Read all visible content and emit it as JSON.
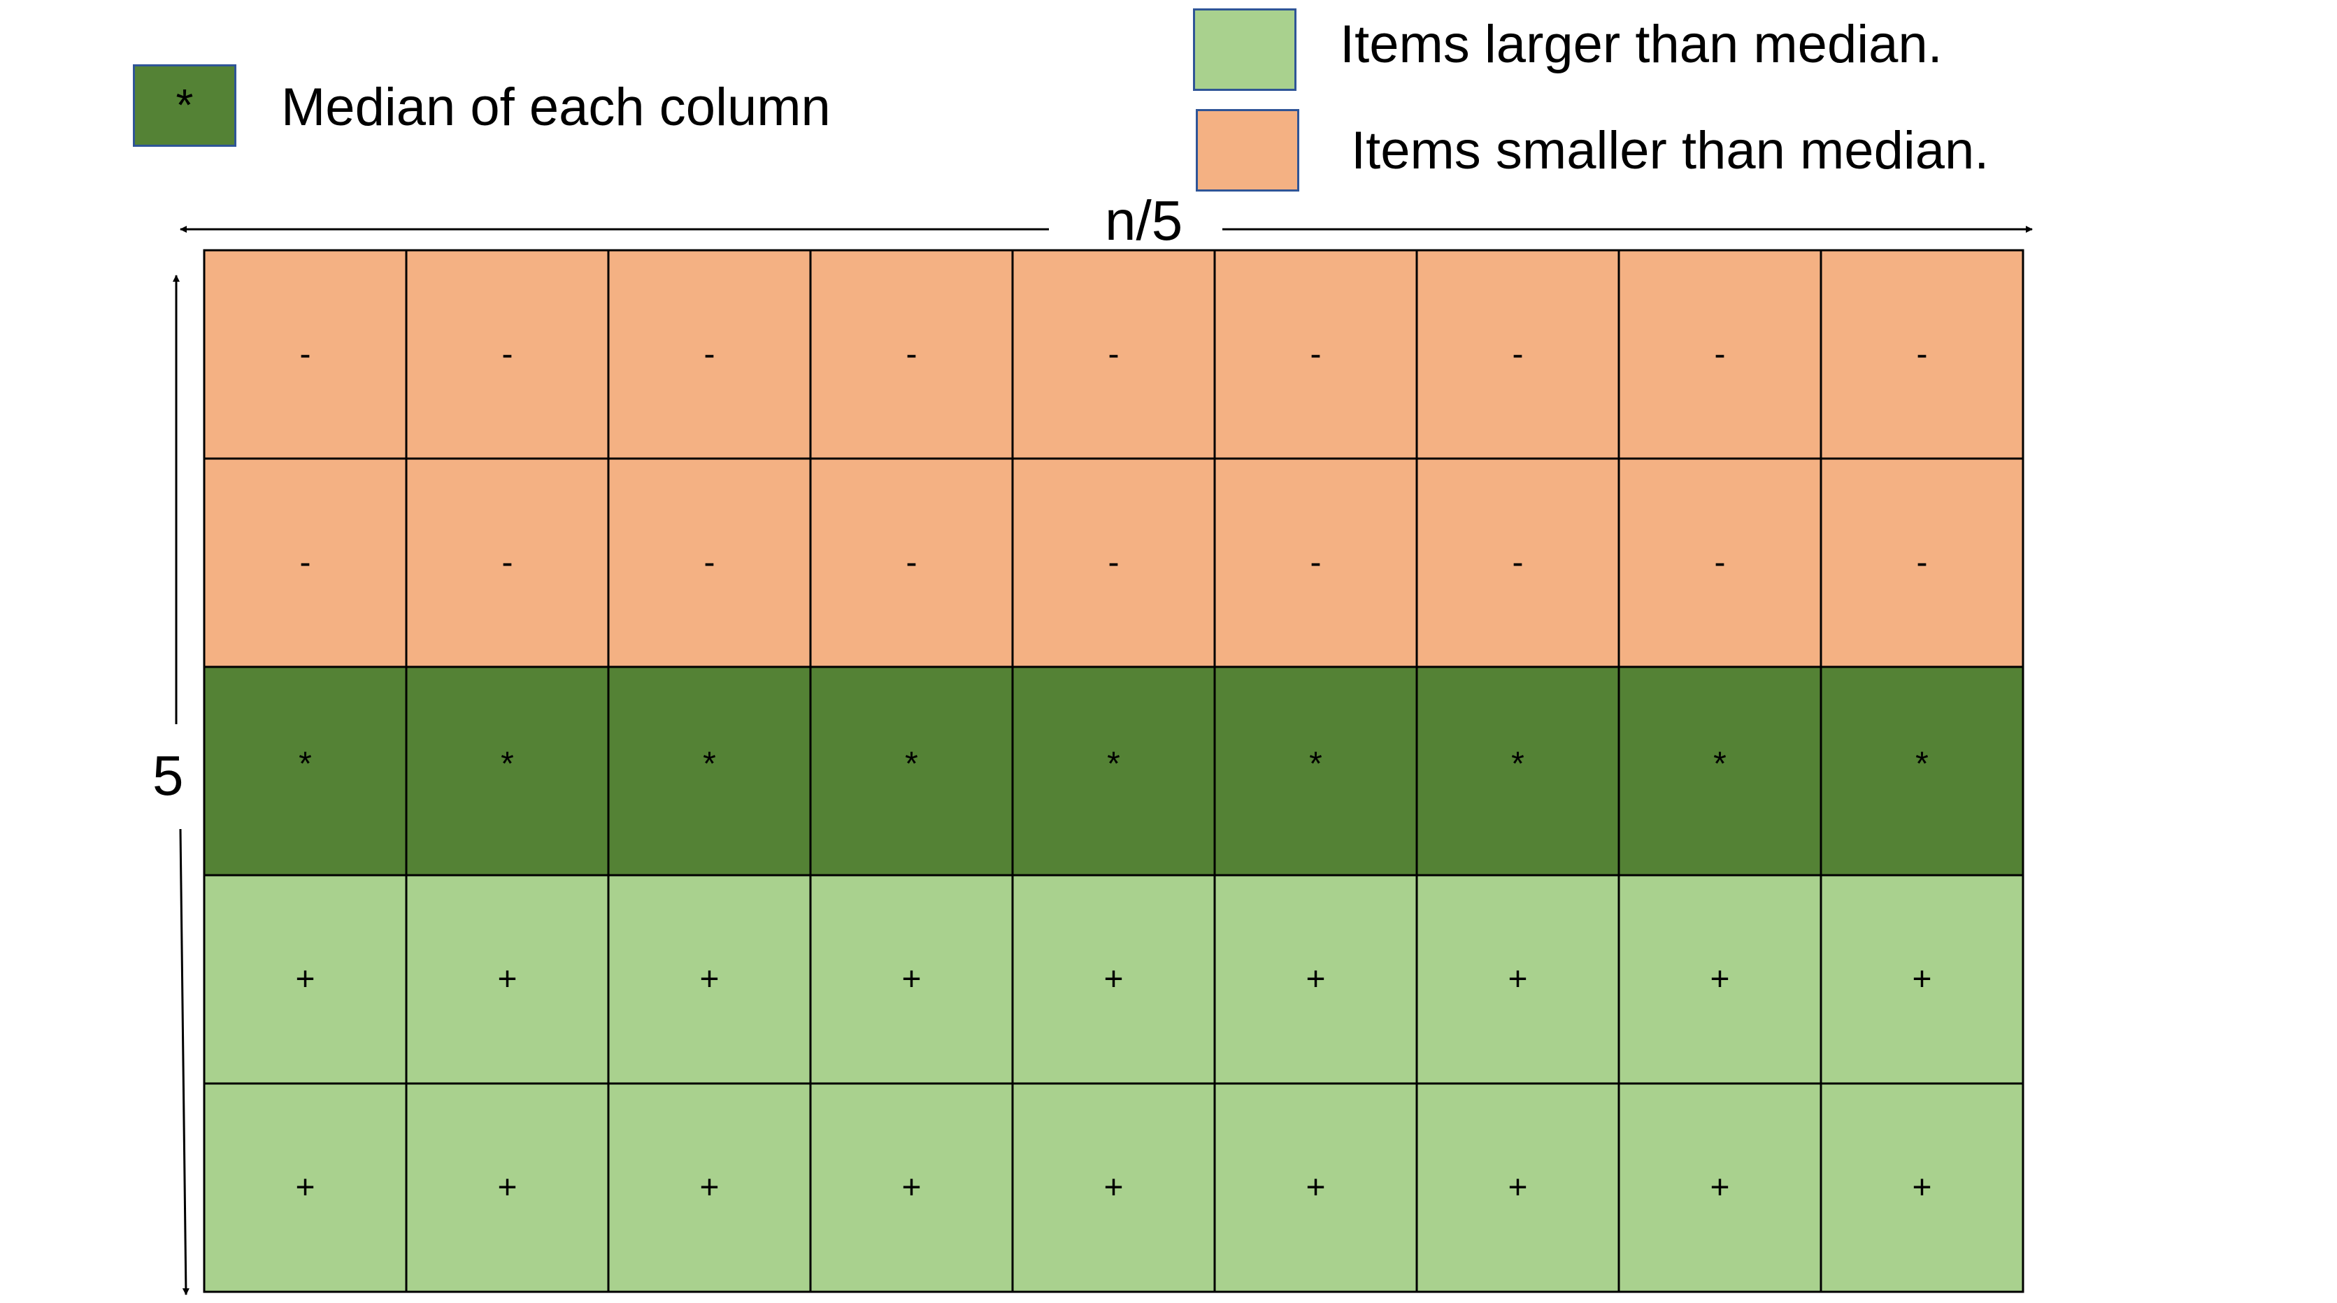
{
  "colors": {
    "smaller": "#f4b183",
    "median": "#548235",
    "larger": "#a9d18e",
    "grid_line": "#000000",
    "swatch_border": "#2f5597"
  },
  "legend": {
    "median": {
      "symbol": "*",
      "label": "Median of each column"
    },
    "larger": {
      "label": "Items larger than median."
    },
    "smaller": {
      "label": "Items smaller than median."
    }
  },
  "dimensions": {
    "width_label": "n/5",
    "height_label": "5"
  },
  "grid": {
    "columns": 9,
    "rows": [
      {
        "kind": "smaller",
        "symbol": "-"
      },
      {
        "kind": "smaller",
        "symbol": "-"
      },
      {
        "kind": "median",
        "symbol": "*"
      },
      {
        "kind": "larger",
        "symbol": "+"
      },
      {
        "kind": "larger",
        "symbol": "+"
      }
    ]
  }
}
